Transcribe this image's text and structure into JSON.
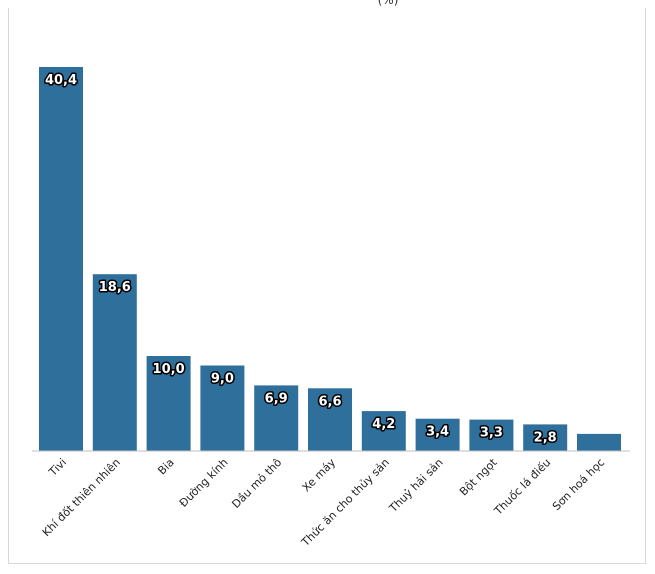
{
  "chart_data": {
    "type": "bar",
    "title_fragment": "(%)",
    "categories": [
      "Tivi",
      "Khí đốt thiên nhiên",
      "Bia",
      "Đường kính",
      "Dầu mỏ thô",
      "Xe máy",
      "Thức ăn cho thủy sản",
      "Thuỷ hải sản",
      "Bột ngọt",
      "Thuốc lá điếu",
      "Sơn hoá học"
    ],
    "values": [
      40.4,
      18.6,
      10.0,
      9.0,
      6.9,
      6.6,
      4.2,
      3.4,
      3.3,
      2.8,
      1.8
    ],
    "value_labels": [
      "40,4",
      "18,6",
      "10,0",
      "9,0",
      "6,9",
      "6,6",
      "4,2",
      "3,4",
      "3,3",
      "2,8",
      ""
    ],
    "ylim": [
      0,
      40.4
    ],
    "grid": false,
    "bar_color": "#2f6f9c"
  }
}
